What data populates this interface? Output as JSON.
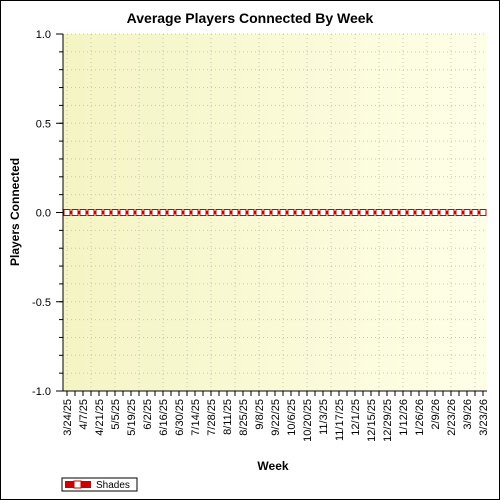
{
  "chart_data": {
    "type": "line",
    "title": "Average Players Connected By Week",
    "xlabel": "Week",
    "ylabel": "Players Connected",
    "ylim": [
      -1.0,
      1.0
    ],
    "yticks": [
      "1.0",
      "0.5",
      "0.0",
      "-0.5",
      "-1.0"
    ],
    "x_tick_labels": [
      "3/24/25",
      "4/7/25",
      "4/21/25",
      "5/5/25",
      "5/19/25",
      "6/2/25",
      "6/16/25",
      "6/30/25",
      "7/14/25",
      "7/28/25",
      "8/11/25",
      "8/25/25",
      "9/8/25",
      "9/22/25",
      "10/6/25",
      "10/20/25",
      "11/3/25",
      "11/17/25",
      "12/1/25",
      "12/15/25",
      "12/29/25",
      "1/12/26",
      "1/26/26",
      "2/9/26",
      "2/23/26",
      "3/9/26",
      "3/23/26"
    ],
    "x": [
      "3/24/25",
      "3/31/25",
      "4/7/25",
      "4/14/25",
      "4/21/25",
      "4/28/25",
      "5/5/25",
      "5/12/25",
      "5/19/25",
      "5/26/25",
      "6/2/25",
      "6/9/25",
      "6/16/25",
      "6/23/25",
      "6/30/25",
      "7/7/25",
      "7/14/25",
      "7/21/25",
      "7/28/25",
      "8/4/25",
      "8/11/25",
      "8/18/25",
      "8/25/25",
      "9/1/25",
      "9/8/25",
      "9/15/25",
      "9/22/25",
      "9/29/25",
      "10/6/25",
      "10/13/25",
      "10/20/25",
      "10/27/25",
      "11/3/25",
      "11/10/25",
      "11/17/25",
      "11/24/25",
      "12/1/25",
      "12/8/25",
      "12/15/25",
      "12/22/25",
      "12/29/25",
      "1/5/26",
      "1/12/26",
      "1/19/26",
      "1/26/26",
      "2/2/26",
      "2/9/26",
      "2/16/26",
      "2/23/26",
      "3/2/26",
      "3/9/26",
      "3/16/26",
      "3/23/26"
    ],
    "series": [
      {
        "name": "Shades",
        "color": "#cc0000",
        "values": [
          0,
          0,
          0,
          0,
          0,
          0,
          0,
          0,
          0,
          0,
          0,
          0,
          0,
          0,
          0,
          0,
          0,
          0,
          0,
          0,
          0,
          0,
          0,
          0,
          0,
          0,
          0,
          0,
          0,
          0,
          0,
          0,
          0,
          0,
          0,
          0,
          0,
          0,
          0,
          0,
          0,
          0,
          0,
          0,
          0,
          0,
          0,
          0,
          0,
          0,
          0,
          0,
          0
        ]
      }
    ],
    "grid": true,
    "legend": "bottom-left",
    "plot_background": [
      "#f4f4c4",
      "#ffffe8"
    ]
  }
}
